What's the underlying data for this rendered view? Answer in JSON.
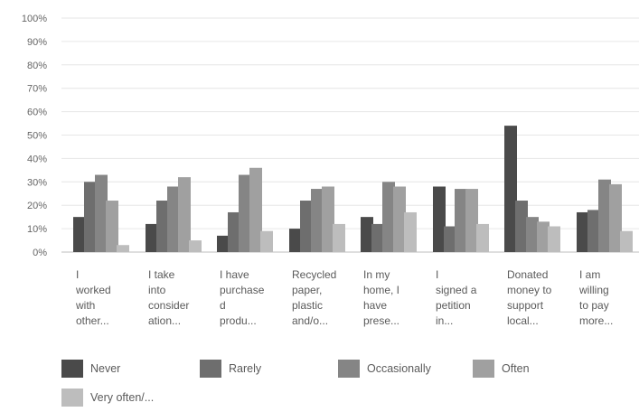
{
  "chart_data": {
    "type": "bar",
    "categories": [
      "I\nworked\nwith\nother...",
      "I take\ninto\nconsider\nation...",
      "I have\npurchase\nd\nprodu...",
      "Recycled\npaper,\nplastic\nand/o...",
      "In my\nhome, I\nhave\nprese...",
      "I\nsigned a\npetition\nin...",
      "Donated\nmoney to\nsupport\nlocal...",
      "I am\nwilling\nto pay\nmore..."
    ],
    "series": [
      {
        "name": "Never",
        "color": "#4a4a4a",
        "values": [
          15,
          12,
          7,
          10,
          15,
          28,
          54,
          17
        ]
      },
      {
        "name": "Rarely",
        "color": "#6e6e6e",
        "values": [
          30,
          22,
          17,
          22,
          12,
          11,
          22,
          18
        ]
      },
      {
        "name": "Occasionally",
        "color": "#858585",
        "values": [
          33,
          28,
          33,
          27,
          30,
          27,
          15,
          31
        ]
      },
      {
        "name": "Often",
        "color": "#a0a0a0",
        "values": [
          22,
          32,
          36,
          28,
          28,
          27,
          13,
          29
        ]
      },
      {
        "name": "Very often/...",
        "color": "#bdbdbd",
        "values": [
          3,
          5,
          9,
          12,
          17,
          12,
          11,
          9
        ]
      }
    ],
    "yticks": [
      "0%",
      "10%",
      "20%",
      "30%",
      "40%",
      "50%",
      "60%",
      "70%",
      "80%",
      "90%",
      "100%"
    ],
    "ylim": [
      0,
      100
    ],
    "grid": true,
    "legend_position": "bottom"
  }
}
